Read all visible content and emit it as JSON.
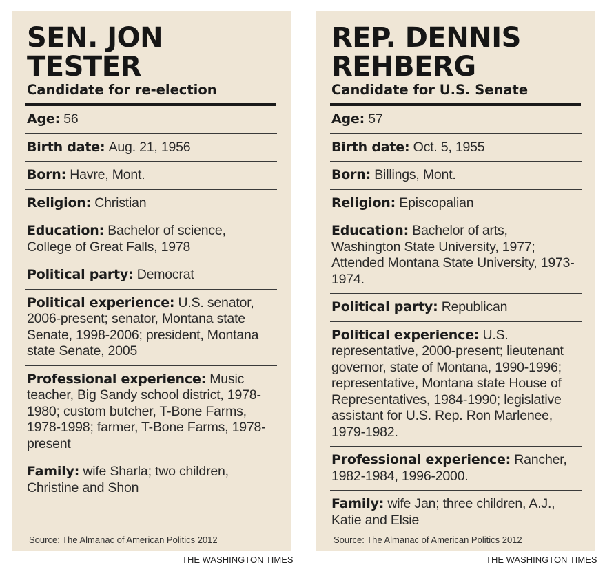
{
  "left": {
    "name_line1": "SEN. JON",
    "name_line2": "TESTER",
    "subtitle": "Candidate for re-election",
    "facts": [
      {
        "label": "Age:",
        "value": "56"
      },
      {
        "label": "Birth date:",
        "value": "Aug. 21, 1956"
      },
      {
        "label": "Born:",
        "value": "Havre, Mont."
      },
      {
        "label": "Religion:",
        "value": "Christian"
      },
      {
        "label": "Education:",
        "value": "Bachelor of science, College of Great Falls, 1978"
      },
      {
        "label": "Political party:",
        "value": "Democrat"
      },
      {
        "label": "Political experience:",
        "value": "U.S. senator, 2006-present; senator, Montana state Senate, 1998-2006; president, Montana state Senate, 2005"
      },
      {
        "label": "Professional experience:",
        "value": "Music teacher, Big Sandy school district, 1978-1980; custom butcher, T-Bone Farms, 1978-1998; farmer, T-Bone Farms, 1978-present"
      },
      {
        "label": "Family:",
        "value": "wife Sharla; two children, Christine and Shon"
      }
    ],
    "source": "Source: The Almanac of American Politics 2012",
    "credit": "THE WASHINGTON TIMES"
  },
  "right": {
    "name_line1": "REP. DENNIS",
    "name_line2": "REHBERG",
    "subtitle": "Candidate for U.S. Senate",
    "facts": [
      {
        "label": "Age:",
        "value": "57"
      },
      {
        "label": "Birth date:",
        "value": "Oct. 5, 1955"
      },
      {
        "label": "Born:",
        "value": "Billings, Mont."
      },
      {
        "label": "Religion:",
        "value": "Episcopalian"
      },
      {
        "label": "Education:",
        "value": "Bachelor of arts, Washington State University, 1977; Attended Montana State University, 1973-1974."
      },
      {
        "label": "Political party:",
        "value": "Republican"
      },
      {
        "label": "Political experience:",
        "value": "U.S. representative, 2000-present; lieutenant governor, state of Montana, 1990-1996; representative, Montana state House of Representatives, 1984-1990; legislative assistant for U.S. Rep. Ron Marlenee, 1979-1982."
      },
      {
        "label": "Professional experience:",
        "value": "Rancher, 1982-1984, 1996-2000."
      },
      {
        "label": "Family:",
        "value": "wife Jan; three children, A.J., Katie and Elsie"
      }
    ],
    "source": "Source: The Almanac of American Politics 2012",
    "credit": "THE WASHINGTON TIMES"
  }
}
